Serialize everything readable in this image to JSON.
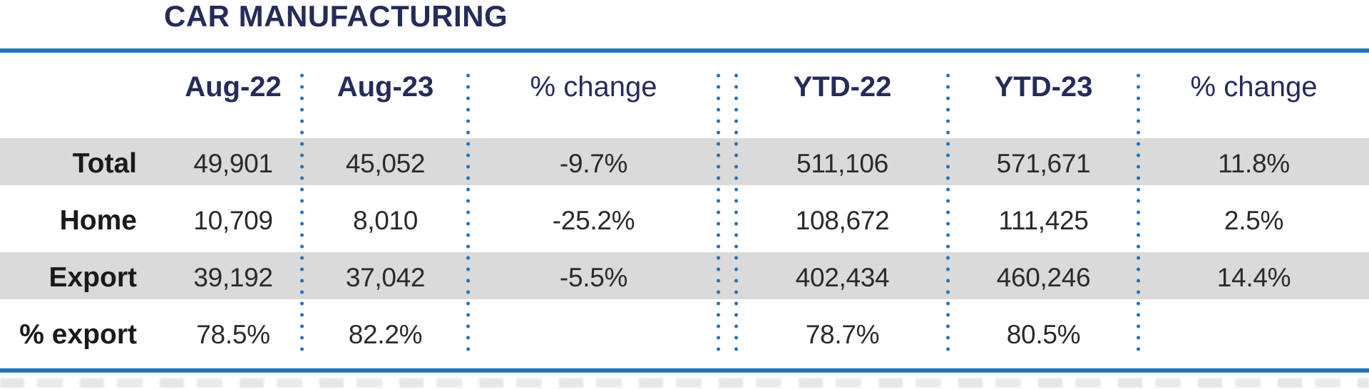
{
  "chart_data": {
    "type": "table",
    "title": "CAR MANUFACTURING",
    "columns": [
      "",
      "Aug-22",
      "Aug-23",
      "% change",
      "YTD-22",
      "YTD-23",
      "% change"
    ],
    "rows": [
      [
        "Total",
        "49,901",
        "45,052",
        "-9.7%",
        "511,106",
        "571,671",
        "11.8%"
      ],
      [
        "Home",
        "10,709",
        "8,010",
        "-25.2%",
        "108,672",
        "111,425",
        "2.5%"
      ],
      [
        "Export",
        "39,192",
        "37,042",
        "-5.5%",
        "402,434",
        "460,246",
        "14.4%"
      ],
      [
        "% export",
        "78.5%",
        "82.2%",
        "",
        "78.7%",
        "80.5%",
        ""
      ]
    ],
    "layout": {
      "striped_rows": [
        0,
        2
      ],
      "column_groups": [
        "month",
        "month",
        "month",
        "ytd",
        "ytd",
        "ytd"
      ],
      "separator_style": "blue-dotted-vertical",
      "group_divider_style": "double-dotted"
    }
  },
  "colors": {
    "accent_blue": "#2176bd",
    "dot_blue": "#2172b8",
    "heading_navy": "#252c5a",
    "stripe_gray": "#dadada",
    "text_dark": "#2a2a2a"
  }
}
